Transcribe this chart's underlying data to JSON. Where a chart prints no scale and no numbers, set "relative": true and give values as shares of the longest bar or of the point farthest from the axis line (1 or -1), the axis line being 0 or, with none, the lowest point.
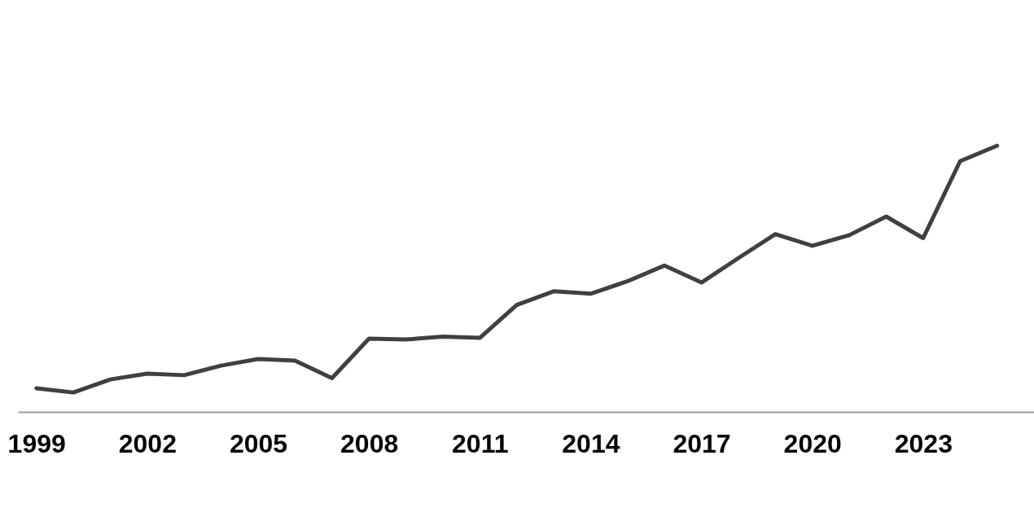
{
  "chart_data": {
    "type": "line",
    "relative": true,
    "x": [
      1999,
      2000,
      2001,
      2002,
      2003,
      2004,
      2005,
      2006,
      2007,
      2008,
      2009,
      2010,
      2011,
      2012,
      2013,
      2014,
      2015,
      2016,
      2017,
      2018,
      2019,
      2020,
      2021,
      2022,
      2023,
      2024,
      2025
    ],
    "series": [
      {
        "color": "#404040",
        "values": [
          0.089,
          0.073,
          0.122,
          0.144,
          0.138,
          0.174,
          0.199,
          0.193,
          0.127,
          0.275,
          0.272,
          0.283,
          0.278,
          0.402,
          0.453,
          0.444,
          0.491,
          0.55,
          0.486,
          0.578,
          0.668,
          0.624,
          0.664,
          0.734,
          0.653,
          0.942,
          1
        ]
      }
    ],
    "xlim": [
      1998.5,
      2026
    ],
    "xticks": [
      1999,
      2002,
      2005,
      2008,
      2011,
      2014,
      2017,
      2020,
      2023
    ],
    "marker": "none",
    "line_style": "solid"
  }
}
